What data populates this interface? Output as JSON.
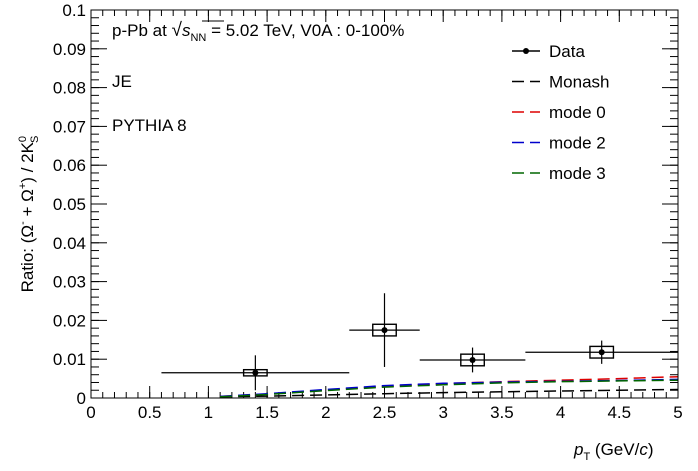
{
  "chart_data": {
    "type": "scatter",
    "annotations": {
      "system_prefix": "p-Pb at ",
      "sqrt_symbol": "√",
      "sqrt_var": "s",
      "sqrt_sub": "NN",
      "system_suffix": " = 5.02 TeV,  V0A : 0-100%",
      "selection": "JE",
      "generator": "PYTHIA 8"
    },
    "xlabel": {
      "var": "p",
      "sub": "T",
      "unit_pre": " (GeV/",
      "unit_var": "c",
      "unit_post": ")"
    },
    "ylabel": {
      "pre": "Ratio: (Ω",
      "sup1": "-",
      "mid": " + ",
      "bar": "Ω",
      "sup2": "+",
      "post": ") / 2K",
      "kaon_sup": "0",
      "kaon_sub": "S"
    },
    "xlim": [
      0,
      5
    ],
    "ylim": [
      0,
      0.1
    ],
    "xticks": [
      "0",
      "0.5",
      "1",
      "1.5",
      "2",
      "2.5",
      "3",
      "3.5",
      "4",
      "4.5",
      "5"
    ],
    "yticks": [
      "0",
      "0.01",
      "0.02",
      "0.03",
      "0.04",
      "0.05",
      "0.06",
      "0.07",
      "0.08",
      "0.09",
      "0.1"
    ],
    "legend_position": "top-right",
    "legend": [
      {
        "label": "Data",
        "style": "marker-line",
        "color": "#000000"
      },
      {
        "label": "Monash",
        "style": "dashed",
        "color": "#000000"
      },
      {
        "label": "mode 0",
        "style": "dashed",
        "color": "#dd0000"
      },
      {
        "label": "mode 2",
        "style": "dashed",
        "color": "#0000cc"
      },
      {
        "label": "mode 3",
        "style": "dashed",
        "color": "#006600"
      }
    ],
    "data": [
      {
        "x": 1.4,
        "xlow": 0.6,
        "xhigh": 2.2,
        "y": 0.0065,
        "stat": 0.0045,
        "syst": 0.0008,
        "syst_halfwidth": 0.1
      },
      {
        "x": 2.5,
        "xlow": 2.2,
        "xhigh": 2.8,
        "y": 0.0175,
        "stat": 0.0095,
        "syst": 0.0015,
        "syst_halfwidth": 0.1
      },
      {
        "x": 3.25,
        "xlow": 2.8,
        "xhigh": 3.7,
        "y": 0.0098,
        "stat": 0.0032,
        "syst": 0.0015,
        "syst_halfwidth": 0.1
      },
      {
        "x": 4.35,
        "xlow": 3.7,
        "xhigh": 5.0,
        "y": 0.0118,
        "stat": 0.003,
        "syst": 0.0015,
        "syst_halfwidth": 0.1
      }
    ],
    "models": [
      {
        "name": "Monash",
        "color": "#000000",
        "x": [
          1.1,
          1.5,
          2.0,
          2.5,
          3.0,
          3.5,
          4.0,
          4.5,
          5.0
        ],
        "y": [
          0.0003,
          0.0005,
          0.0008,
          0.0011,
          0.0014,
          0.0016,
          0.0018,
          0.002,
          0.0022
        ]
      },
      {
        "name": "mode 0",
        "color": "#dd0000",
        "x": [
          1.1,
          1.5,
          2.0,
          2.5,
          3.0,
          3.5,
          4.0,
          4.5,
          5.0
        ],
        "y": [
          0.0004,
          0.001,
          0.002,
          0.003,
          0.0037,
          0.0042,
          0.0046,
          0.005,
          0.0055
        ]
      },
      {
        "name": "mode 2",
        "color": "#0000cc",
        "x": [
          1.1,
          1.5,
          2.0,
          2.5,
          3.0,
          3.5,
          4.0,
          4.5,
          5.0
        ],
        "y": [
          0.0004,
          0.0011,
          0.0022,
          0.0032,
          0.0038,
          0.0041,
          0.0043,
          0.0045,
          0.0048
        ]
      },
      {
        "name": "mode 3",
        "color": "#006600",
        "x": [
          1.1,
          1.5,
          2.0,
          2.5,
          3.0,
          3.5,
          4.0,
          4.5,
          5.0
        ],
        "y": [
          0.0003,
          0.0009,
          0.0019,
          0.0028,
          0.0034,
          0.0039,
          0.0042,
          0.0044,
          0.0046
        ]
      }
    ]
  }
}
